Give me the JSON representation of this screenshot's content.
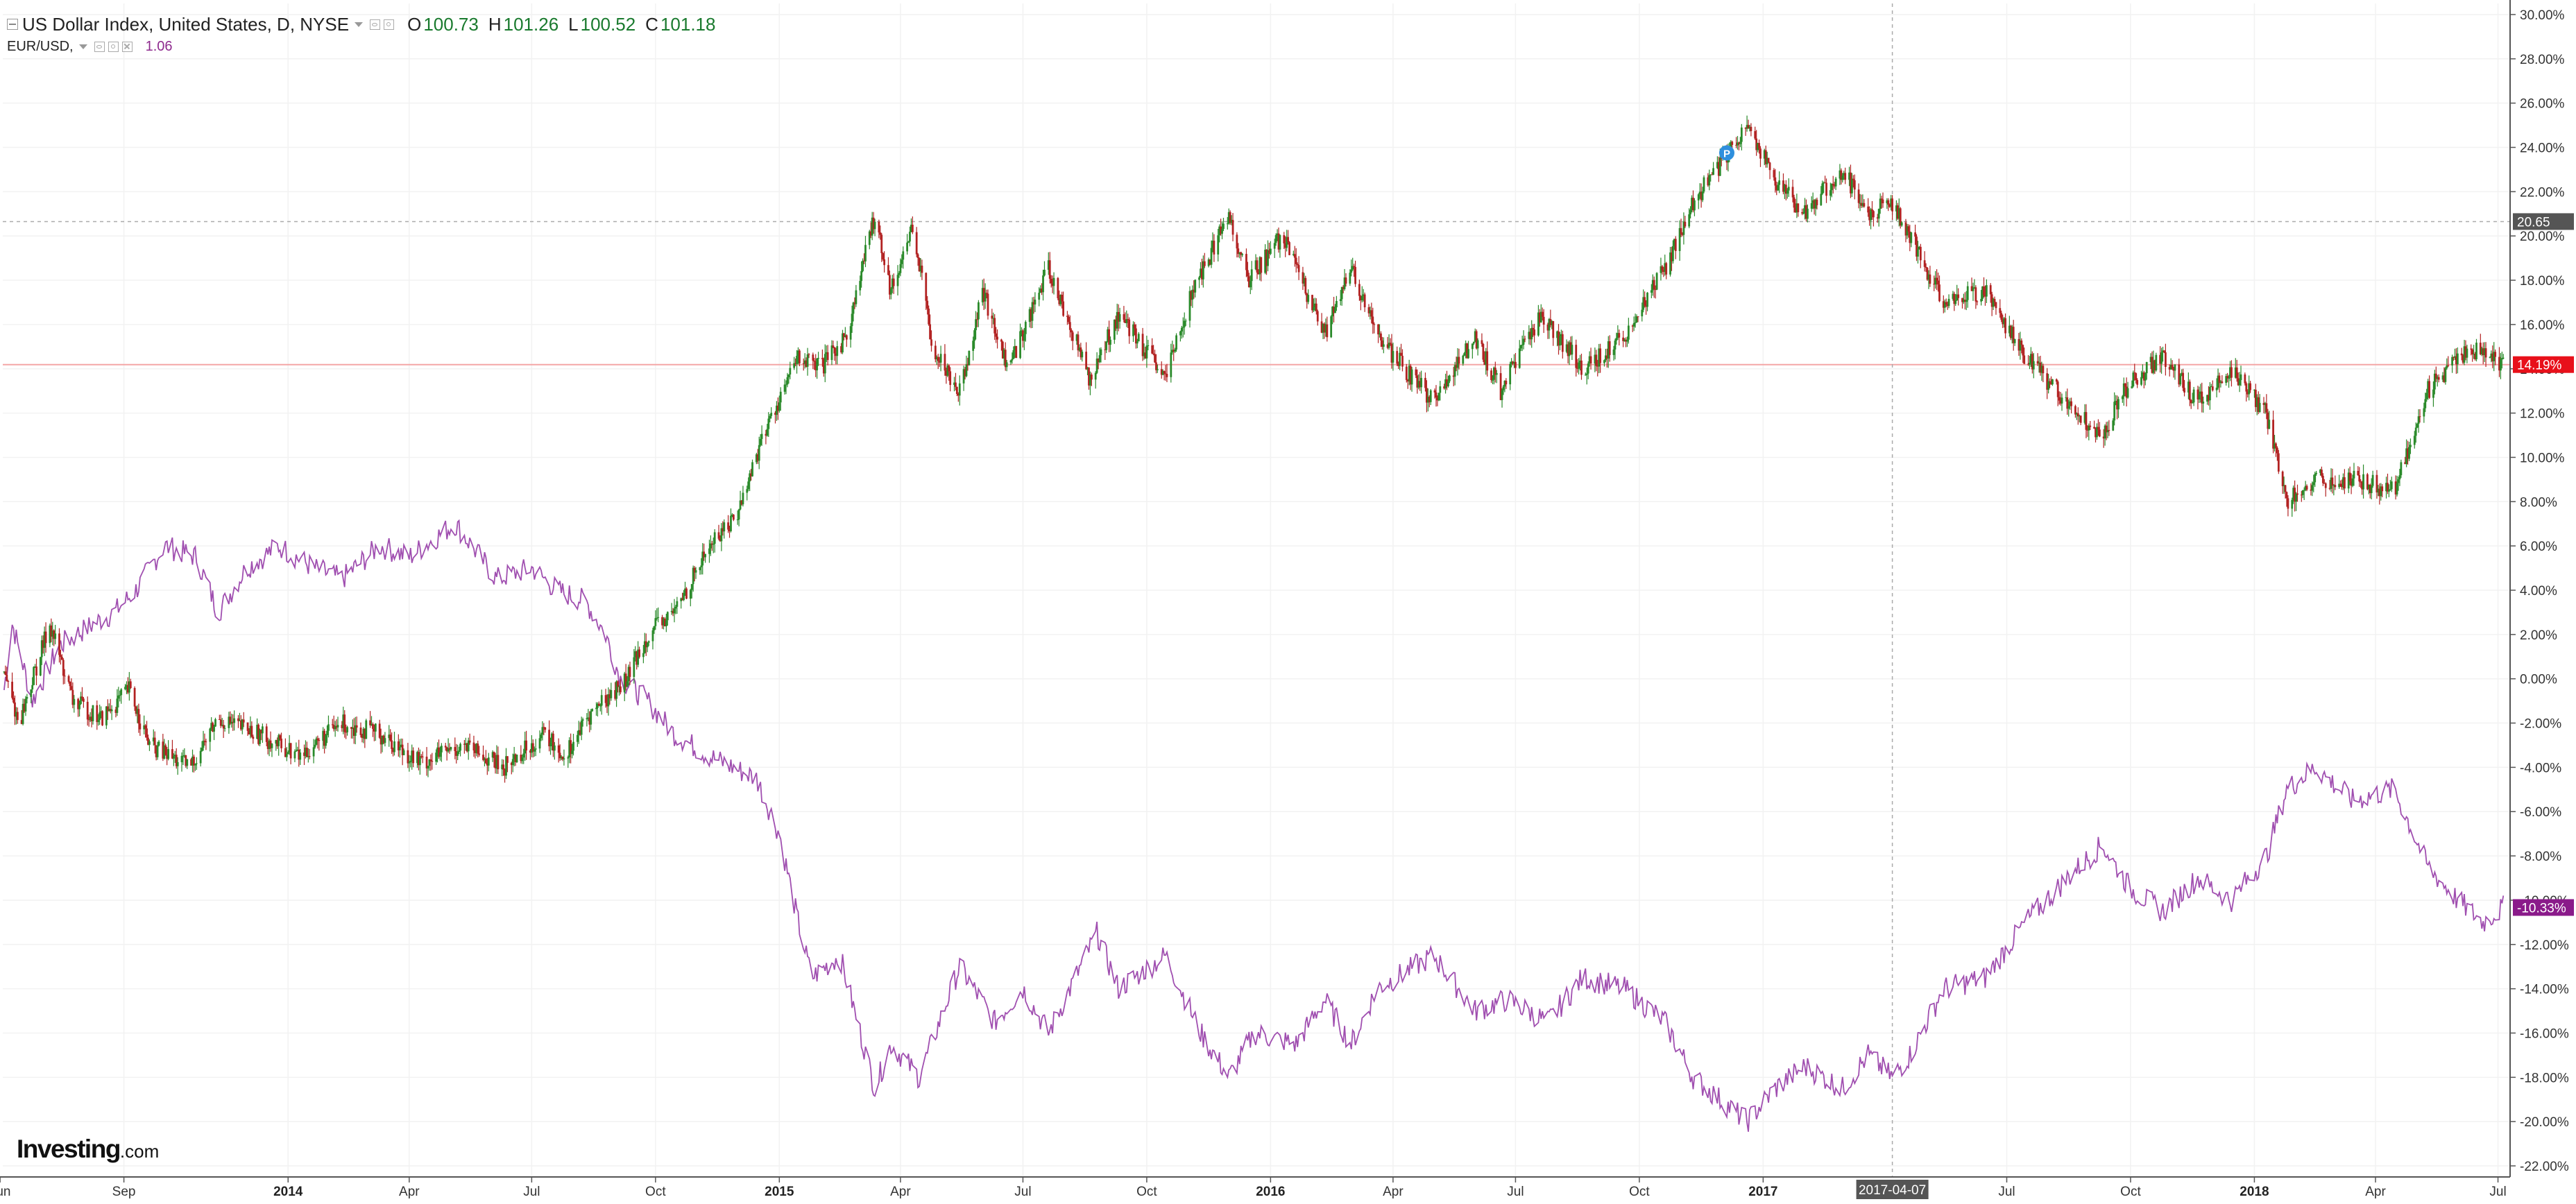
{
  "legend": {
    "main_title": "US Dollar Index, United States, D, NYSE",
    "ohlc": {
      "o_label": "O",
      "o_value": "100.73",
      "h_label": "H",
      "h_value": "101.26",
      "l_label": "L",
      "l_value": "100.52",
      "c_label": "C",
      "c_value": "101.18"
    },
    "compare_title": "EUR/USD,",
    "compare_value": "1.06"
  },
  "branding": {
    "logo_main": "Investing",
    "logo_suffix": ".com"
  },
  "crosshair": {
    "date_label": "2017-04-07",
    "value_label": "20.65"
  },
  "colors": {
    "up": "#2a8a2a",
    "down": "#b22222",
    "eur_line": "#a04fb0",
    "zero_line": "#f4a6a6",
    "last_usd": "#e8101a",
    "last_eur": "#8a1a8a",
    "crosshair_label": "#555555"
  },
  "chart_data": {
    "type": "line",
    "title": "US Dollar Index, United States, D, NYSE",
    "y_unit": "%",
    "ylim": [
      -22.5,
      30.5
    ],
    "y_ticks": [
      30,
      28,
      26,
      24,
      22,
      20,
      18,
      16,
      14,
      12,
      10,
      8,
      6,
      4,
      2,
      0,
      -2,
      -4,
      -6,
      -8,
      -10,
      -12,
      -14,
      -16,
      -18,
      -20,
      -22
    ],
    "y_tick_labels": [
      "30.00%",
      "28.00%",
      "26.00%",
      "24.00%",
      "22.00%",
      "20.00%",
      "18.00%",
      "16.00%",
      "14.00%",
      "12.00%",
      "10.00%",
      "8.00%",
      "6.00%",
      "4.00%",
      "2.00%",
      "0.00%",
      "-2.00%",
      "-4.00%",
      "-6.00%",
      "-8.00%",
      "-10.00%",
      "-12.00%",
      "-14.00%",
      "-16.00%",
      "-18.00%",
      "-20.00%",
      "-22.00%"
    ],
    "xlim": [
      "2013-06-03",
      "2018-07-10"
    ],
    "x_ticks": [
      {
        "date": "2013-06-01",
        "label": "Jun",
        "bold": false
      },
      {
        "date": "2013-09-01",
        "label": "Sep",
        "bold": false
      },
      {
        "date": "2014-01-01",
        "label": "2014",
        "bold": true
      },
      {
        "date": "2014-04-01",
        "label": "Apr",
        "bold": false
      },
      {
        "date": "2014-07-01",
        "label": "Jul",
        "bold": false
      },
      {
        "date": "2014-10-01",
        "label": "Oct",
        "bold": false
      },
      {
        "date": "2015-01-01",
        "label": "2015",
        "bold": true
      },
      {
        "date": "2015-04-01",
        "label": "Apr",
        "bold": false
      },
      {
        "date": "2015-07-01",
        "label": "Jul",
        "bold": false
      },
      {
        "date": "2015-10-01",
        "label": "Oct",
        "bold": false
      },
      {
        "date": "2016-01-01",
        "label": "2016",
        "bold": true
      },
      {
        "date": "2016-04-01",
        "label": "Apr",
        "bold": false
      },
      {
        "date": "2016-07-01",
        "label": "Jul",
        "bold": false
      },
      {
        "date": "2016-10-01",
        "label": "Oct",
        "bold": false
      },
      {
        "date": "2017-01-01",
        "label": "2017",
        "bold": true
      },
      {
        "date": "2017-07-01",
        "label": "Jul",
        "bold": false
      },
      {
        "date": "2017-10-01",
        "label": "Oct",
        "bold": false
      },
      {
        "date": "2018-01-01",
        "label": "2018",
        "bold": true
      },
      {
        "date": "2018-04-01",
        "label": "Apr",
        "bold": false
      },
      {
        "date": "2018-07-01",
        "label": "Jul",
        "bold": false
      }
    ],
    "crosshair_date": "2017-04-07",
    "crosshair_value": 20.65,
    "zero_line_value": 14.19,
    "grid": true,
    "candle_series": {
      "name": "US Dollar Index",
      "chart_style": "candlestick",
      "last_label": "14.19%",
      "points": [
        {
          "date": "2013-06-03",
          "y": 0.5
        },
        {
          "date": "2013-06-15",
          "y": -2.0
        },
        {
          "date": "2013-07-08",
          "y": 2.5
        },
        {
          "date": "2013-07-25",
          "y": -1.0
        },
        {
          "date": "2013-08-15",
          "y": -1.8
        },
        {
          "date": "2013-09-05",
          "y": -0.5
        },
        {
          "date": "2013-09-20",
          "y": -3.0
        },
        {
          "date": "2013-10-20",
          "y": -4.0
        },
        {
          "date": "2013-11-10",
          "y": -1.8
        },
        {
          "date": "2013-12-10",
          "y": -2.5
        },
        {
          "date": "2014-01-10",
          "y": -3.5
        },
        {
          "date": "2014-02-10",
          "y": -2.0
        },
        {
          "date": "2014-03-10",
          "y": -2.5
        },
        {
          "date": "2014-04-10",
          "y": -3.8
        },
        {
          "date": "2014-05-10",
          "y": -3.0
        },
        {
          "date": "2014-06-10",
          "y": -4.0
        },
        {
          "date": "2014-07-10",
          "y": -2.5
        },
        {
          "date": "2014-07-25",
          "y": -3.5
        },
        {
          "date": "2014-08-15",
          "y": -1.5
        },
        {
          "date": "2014-09-10",
          "y": 0.0
        },
        {
          "date": "2014-09-25",
          "y": 2.0
        },
        {
          "date": "2014-10-15",
          "y": 3.0
        },
        {
          "date": "2014-11-10",
          "y": 6.0
        },
        {
          "date": "2014-12-01",
          "y": 7.5
        },
        {
          "date": "2014-12-20",
          "y": 11.0
        },
        {
          "date": "2015-01-15",
          "y": 14.5
        },
        {
          "date": "2015-02-01",
          "y": 14.0
        },
        {
          "date": "2015-02-20",
          "y": 15.5
        },
        {
          "date": "2015-03-13",
          "y": 21.0
        },
        {
          "date": "2015-03-25",
          "y": 17.5
        },
        {
          "date": "2015-04-10",
          "y": 20.5
        },
        {
          "date": "2015-04-25",
          "y": 15.0
        },
        {
          "date": "2015-05-15",
          "y": 13.0
        },
        {
          "date": "2015-06-01",
          "y": 17.5
        },
        {
          "date": "2015-06-20",
          "y": 14.0
        },
        {
          "date": "2015-07-20",
          "y": 18.5
        },
        {
          "date": "2015-08-20",
          "y": 13.5
        },
        {
          "date": "2015-09-10",
          "y": 16.5
        },
        {
          "date": "2015-10-15",
          "y": 13.5
        },
        {
          "date": "2015-11-01",
          "y": 17.0
        },
        {
          "date": "2015-12-01",
          "y": 21.0
        },
        {
          "date": "2015-12-15",
          "y": 18.0
        },
        {
          "date": "2016-01-10",
          "y": 20.0
        },
        {
          "date": "2016-02-10",
          "y": 15.5
        },
        {
          "date": "2016-03-01",
          "y": 18.5
        },
        {
          "date": "2016-03-20",
          "y": 15.5
        },
        {
          "date": "2016-05-01",
          "y": 12.5
        },
        {
          "date": "2016-06-01",
          "y": 15.5
        },
        {
          "date": "2016-06-20",
          "y": 13.0
        },
        {
          "date": "2016-07-20",
          "y": 16.5
        },
        {
          "date": "2016-08-20",
          "y": 14.0
        },
        {
          "date": "2016-09-20",
          "y": 15.5
        },
        {
          "date": "2016-10-20",
          "y": 18.5
        },
        {
          "date": "2016-11-10",
          "y": 21.5
        },
        {
          "date": "2016-12-20",
          "y": 25.0
        },
        {
          "date": "2017-01-10",
          "y": 22.5
        },
        {
          "date": "2017-02-01",
          "y": 21.0
        },
        {
          "date": "2017-03-01",
          "y": 23.0
        },
        {
          "date": "2017-03-20",
          "y": 21.0
        },
        {
          "date": "2017-04-07",
          "y": 21.5
        },
        {
          "date": "2017-04-20",
          "y": 20.0
        },
        {
          "date": "2017-05-15",
          "y": 17.0
        },
        {
          "date": "2017-06-15",
          "y": 17.5
        },
        {
          "date": "2017-07-15",
          "y": 14.5
        },
        {
          "date": "2017-08-15",
          "y": 12.5
        },
        {
          "date": "2017-09-10",
          "y": 11.0
        },
        {
          "date": "2017-10-01",
          "y": 13.5
        },
        {
          "date": "2017-10-25",
          "y": 14.5
        },
        {
          "date": "2017-11-20",
          "y": 12.5
        },
        {
          "date": "2017-12-15",
          "y": 14.0
        },
        {
          "date": "2018-01-10",
          "y": 12.0
        },
        {
          "date": "2018-01-25",
          "y": 8.0
        },
        {
          "date": "2018-02-15",
          "y": 9.0
        },
        {
          "date": "2018-03-15",
          "y": 9.0
        },
        {
          "date": "2018-04-15",
          "y": 8.5
        },
        {
          "date": "2018-05-10",
          "y": 13.0
        },
        {
          "date": "2018-06-01",
          "y": 14.5
        },
        {
          "date": "2018-06-20",
          "y": 15.0
        },
        {
          "date": "2018-07-05",
          "y": 14.19
        }
      ]
    },
    "line_series": {
      "name": "EUR/USD",
      "last_label": "-10.33%",
      "points": [
        {
          "date": "2013-06-03",
          "y": -1.0
        },
        {
          "date": "2013-06-10",
          "y": 2.5
        },
        {
          "date": "2013-06-25",
          "y": -1.0
        },
        {
          "date": "2013-07-15",
          "y": 1.5
        },
        {
          "date": "2013-08-10",
          "y": 2.5
        },
        {
          "date": "2013-08-25",
          "y": 3.0
        },
        {
          "date": "2013-09-10",
          "y": 4.0
        },
        {
          "date": "2013-10-01",
          "y": 6.0
        },
        {
          "date": "2013-10-25",
          "y": 5.5
        },
        {
          "date": "2013-11-10",
          "y": 3.0
        },
        {
          "date": "2013-12-01",
          "y": 5.0
        },
        {
          "date": "2013-12-25",
          "y": 6.0
        },
        {
          "date": "2014-01-20",
          "y": 5.0
        },
        {
          "date": "2014-02-10",
          "y": 4.5
        },
        {
          "date": "2014-03-10",
          "y": 6.0
        },
        {
          "date": "2014-04-01",
          "y": 5.5
        },
        {
          "date": "2014-05-05",
          "y": 7.0
        },
        {
          "date": "2014-06-05",
          "y": 4.5
        },
        {
          "date": "2014-07-01",
          "y": 5.0
        },
        {
          "date": "2014-07-20",
          "y": 4.0
        },
        {
          "date": "2014-08-10",
          "y": 3.5
        },
        {
          "date": "2014-08-25",
          "y": 2.0
        },
        {
          "date": "2014-09-05",
          "y": 0.0
        },
        {
          "date": "2014-09-25",
          "y": -1.0
        },
        {
          "date": "2014-10-15",
          "y": -2.5
        },
        {
          "date": "2014-11-10",
          "y": -3.5
        },
        {
          "date": "2014-12-15",
          "y": -4.5
        },
        {
          "date": "2015-01-01",
          "y": -7.0
        },
        {
          "date": "2015-01-15",
          "y": -11.0
        },
        {
          "date": "2015-01-25",
          "y": -13.5
        },
        {
          "date": "2015-02-15",
          "y": -12.5
        },
        {
          "date": "2015-03-13",
          "y": -18.5
        },
        {
          "date": "2015-03-25",
          "y": -16.5
        },
        {
          "date": "2015-04-15",
          "y": -18.0
        },
        {
          "date": "2015-05-15",
          "y": -13.0
        },
        {
          "date": "2015-06-10",
          "y": -15.5
        },
        {
          "date": "2015-07-01",
          "y": -14.0
        },
        {
          "date": "2015-07-20",
          "y": -16.0
        },
        {
          "date": "2015-08-25",
          "y": -11.5
        },
        {
          "date": "2015-09-10",
          "y": -14.0
        },
        {
          "date": "2015-10-15",
          "y": -12.5
        },
        {
          "date": "2015-11-10",
          "y": -16.0
        },
        {
          "date": "2015-12-01",
          "y": -18.0
        },
        {
          "date": "2015-12-20",
          "y": -16.0
        },
        {
          "date": "2016-01-20",
          "y": -16.5
        },
        {
          "date": "2016-02-10",
          "y": -14.5
        },
        {
          "date": "2016-03-01",
          "y": -16.5
        },
        {
          "date": "2016-03-20",
          "y": -14.0
        },
        {
          "date": "2016-05-01",
          "y": -12.5
        },
        {
          "date": "2016-06-01",
          "y": -15.0
        },
        {
          "date": "2016-06-25",
          "y": -14.5
        },
        {
          "date": "2016-07-25",
          "y": -15.5
        },
        {
          "date": "2016-08-20",
          "y": -13.5
        },
        {
          "date": "2016-09-20",
          "y": -14.0
        },
        {
          "date": "2016-10-20",
          "y": -15.5
        },
        {
          "date": "2016-11-10",
          "y": -18.0
        },
        {
          "date": "2016-12-20",
          "y": -20.0
        },
        {
          "date": "2017-01-10",
          "y": -18.5
        },
        {
          "date": "2017-02-01",
          "y": -17.5
        },
        {
          "date": "2017-03-01",
          "y": -18.5
        },
        {
          "date": "2017-03-20",
          "y": -17.0
        },
        {
          "date": "2017-04-07",
          "y": -18.0
        },
        {
          "date": "2017-04-20",
          "y": -17.0
        },
        {
          "date": "2017-05-15",
          "y": -14.0
        },
        {
          "date": "2017-06-15",
          "y": -13.5
        },
        {
          "date": "2017-07-15",
          "y": -11.0
        },
        {
          "date": "2017-08-15",
          "y": -9.0
        },
        {
          "date": "2017-09-10",
          "y": -7.5
        },
        {
          "date": "2017-10-01",
          "y": -9.5
        },
        {
          "date": "2017-10-25",
          "y": -10.5
        },
        {
          "date": "2017-11-20",
          "y": -9.0
        },
        {
          "date": "2017-12-15",
          "y": -10.0
        },
        {
          "date": "2018-01-10",
          "y": -8.0
        },
        {
          "date": "2018-01-25",
          "y": -5.0
        },
        {
          "date": "2018-02-15",
          "y": -4.0
        },
        {
          "date": "2018-03-15",
          "y": -5.5
        },
        {
          "date": "2018-04-15",
          "y": -5.0
        },
        {
          "date": "2018-05-10",
          "y": -8.5
        },
        {
          "date": "2018-06-01",
          "y": -10.0
        },
        {
          "date": "2018-06-20",
          "y": -11.0
        },
        {
          "date": "2018-07-05",
          "y": -10.33
        }
      ]
    }
  }
}
